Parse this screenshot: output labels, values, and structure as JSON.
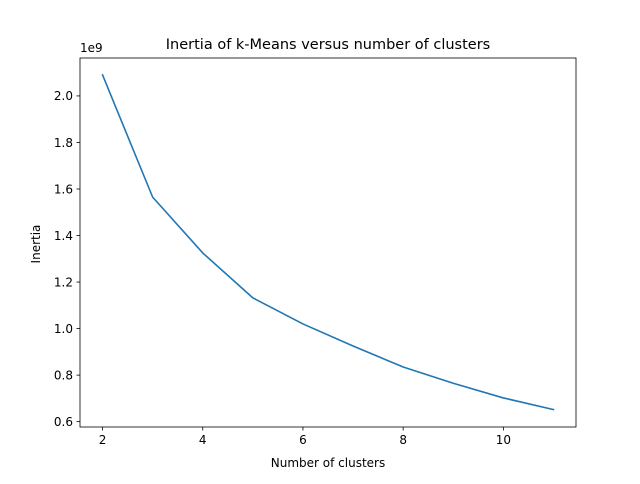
{
  "chart_data": {
    "type": "line",
    "title": "Inertia of k-Means versus number of clusters",
    "xlabel": "Number of clusters",
    "ylabel": "Inertia",
    "y_offset_label": "1e9",
    "xlim": [
      1.55,
      11.45
    ],
    "ylim": [
      0.577,
      2.163
    ],
    "x_ticks": [
      2,
      4,
      6,
      8,
      10
    ],
    "y_ticks": [
      0.6,
      0.8,
      1.0,
      1.2,
      1.4,
      1.6,
      1.8,
      2.0
    ],
    "x_tick_labels": [
      "2",
      "4",
      "6",
      "8",
      "10"
    ],
    "y_tick_labels": [
      "0.6",
      "0.8",
      "1.0",
      "1.2",
      "1.4",
      "1.6",
      "1.8",
      "2.0"
    ],
    "grid": false,
    "series": [
      {
        "color": "#1f77b4",
        "x": [
          2,
          3,
          4,
          5,
          6,
          7,
          8,
          9,
          10,
          11
        ],
        "y": [
          2.09,
          1.565,
          1.325,
          1.132,
          1.02,
          0.925,
          0.835,
          0.765,
          0.702,
          0.652
        ]
      }
    ]
  }
}
